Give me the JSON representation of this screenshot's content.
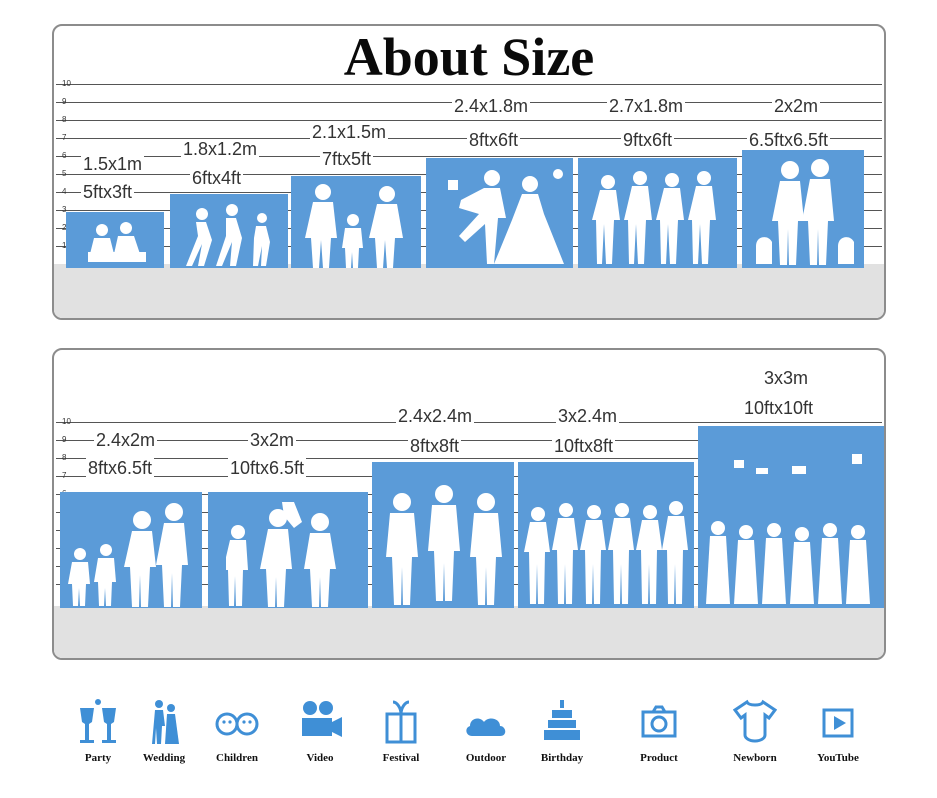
{
  "title": "About Size",
  "ruler_ticks": [
    "10",
    "9",
    "8",
    "7",
    "6",
    "5",
    "4",
    "3",
    "2",
    "1"
  ],
  "colors": {
    "block": "#5b9bd8",
    "floor": "#e1e1e1",
    "icon": "#3f8fd6"
  },
  "row1": [
    {
      "metric": "1.5x1m",
      "imperial": "5ftx3ft",
      "scene": "children-reading"
    },
    {
      "metric": "1.8x1.2m",
      "imperial": "6ftx4ft",
      "scene": "children-running"
    },
    {
      "metric": "2.1x1.5m",
      "imperial": "7ftx5ft",
      "scene": "family"
    },
    {
      "metric": "2.4x1.8m",
      "imperial": "8ftx6ft",
      "scene": "wedding-couple"
    },
    {
      "metric": "2.7x1.8m",
      "imperial": "9ftx6ft",
      "scene": "group-of-women"
    },
    {
      "metric": "2x2m",
      "imperial": "6.5ftx6.5ft",
      "scene": "couple-with-dogs"
    }
  ],
  "row2": [
    {
      "metric": "2.4x2m",
      "imperial": "8ftx6.5ft",
      "scene": "family-of-four"
    },
    {
      "metric": "3x2m",
      "imperial": "10ftx6.5ft",
      "scene": "family-with-child"
    },
    {
      "metric": "2.4x2.4m",
      "imperial": "8ftx8ft",
      "scene": "three-men"
    },
    {
      "metric": "3x2.4m",
      "imperial": "10ftx8ft",
      "scene": "group-of-friends"
    },
    {
      "metric": "3x3m",
      "imperial": "10ftx10ft",
      "scene": "graduation-group"
    }
  ],
  "usages": [
    {
      "label": "Party",
      "icon": "cocktail-glasses-icon"
    },
    {
      "label": "Wedding",
      "icon": "wedding-couple-icon"
    },
    {
      "label": "Children",
      "icon": "children-faces-icon"
    },
    {
      "label": "Video",
      "icon": "video-camera-icon"
    },
    {
      "label": "Festival",
      "icon": "gift-box-icon"
    },
    {
      "label": "Outdoor",
      "icon": "cloud-icon"
    },
    {
      "label": "Birthday",
      "icon": "birthday-cake-icon"
    },
    {
      "label": "Product",
      "icon": "photo-camera-icon"
    },
    {
      "label": "Newborn",
      "icon": "baby-onesie-icon"
    },
    {
      "label": "YouTube",
      "icon": "play-button-icon"
    }
  ]
}
